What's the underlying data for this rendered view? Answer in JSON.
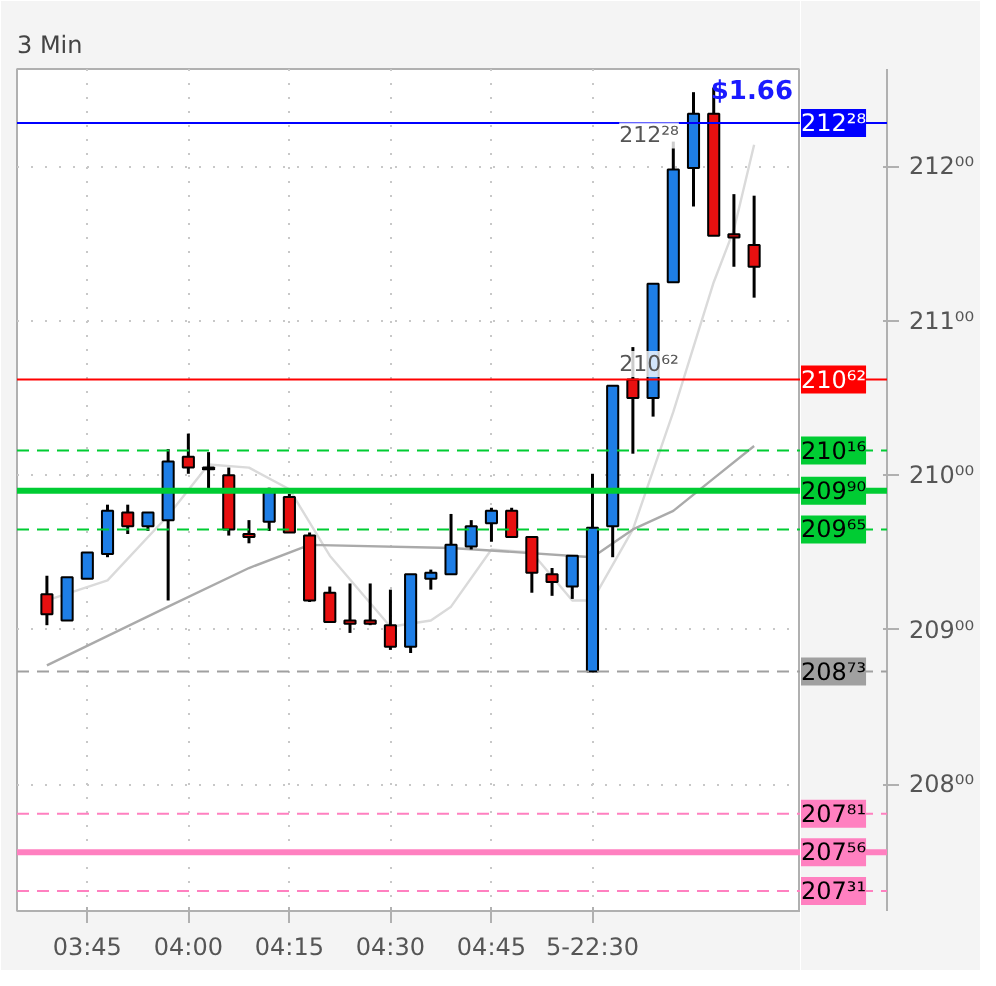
{
  "chart_data": {
    "type": "candlestick",
    "title": "3 Min",
    "x": [
      3.65,
      3.7,
      3.75,
      3.8,
      3.85,
      3.9,
      3.95,
      4.0,
      4.05,
      4.1,
      4.15,
      4.2,
      4.25,
      4.3,
      4.35,
      4.4,
      4.45,
      4.5,
      4.55,
      4.6,
      4.65,
      4.7,
      4.75,
      4.8,
      4.85,
      4.9,
      4.95,
      5.0,
      5.05,
      5.1,
      5.15,
      5.2,
      5.25,
      5.3,
      5.35,
      5.4
    ],
    "ohlc": [
      [
        209.23,
        209.35,
        209.03,
        209.1
      ],
      [
        209.06,
        209.34,
        209.06,
        209.34
      ],
      [
        209.33,
        209.5,
        209.33,
        209.5
      ],
      [
        209.49,
        209.81,
        209.47,
        209.77
      ],
      [
        209.76,
        209.81,
        209.62,
        209.67
      ],
      [
        209.67,
        209.76,
        209.64,
        209.76
      ],
      [
        209.71,
        210.17,
        209.19,
        210.09
      ],
      [
        210.12,
        210.27,
        210.01,
        210.05
      ],
      [
        210.05,
        210.15,
        209.91,
        210.04
      ],
      [
        210.0,
        210.05,
        209.61,
        209.65
      ],
      [
        209.62,
        209.71,
        209.56,
        209.6
      ],
      [
        209.7,
        209.92,
        209.64,
        209.9
      ],
      [
        209.86,
        209.88,
        209.63,
        209.63
      ],
      [
        209.61,
        209.63,
        209.18,
        209.19
      ],
      [
        209.24,
        209.28,
        209.05,
        209.05
      ],
      [
        209.06,
        209.3,
        208.98,
        209.04
      ],
      [
        209.06,
        209.3,
        209.03,
        209.04
      ],
      [
        209.03,
        209.26,
        208.87,
        208.89
      ],
      [
        208.89,
        209.36,
        208.85,
        209.36
      ],
      [
        209.33,
        209.39,
        209.26,
        209.37
      ],
      [
        209.36,
        209.75,
        209.36,
        209.55
      ],
      [
        209.54,
        209.71,
        209.52,
        209.67
      ],
      [
        209.69,
        209.79,
        209.57,
        209.77
      ],
      [
        209.77,
        209.79,
        209.6,
        209.6
      ],
      [
        209.6,
        209.6,
        209.24,
        209.37
      ],
      [
        209.36,
        209.4,
        209.22,
        209.31
      ],
      [
        209.28,
        209.48,
        209.2,
        209.48
      ],
      [
        208.73,
        210.01,
        208.73,
        209.66
      ],
      [
        209.67,
        210.58,
        209.47,
        210.58
      ],
      [
        210.62,
        210.83,
        210.14,
        210.5
      ],
      [
        210.5,
        211.24,
        210.38,
        211.24
      ],
      [
        211.25,
        212.16,
        211.25,
        211.98
      ],
      [
        211.99,
        212.48,
        211.74,
        212.34
      ],
      [
        212.34,
        212.51,
        211.55,
        211.55
      ],
      [
        211.56,
        211.82,
        211.35,
        211.54
      ],
      [
        211.49,
        211.81,
        211.15,
        211.35
      ]
    ],
    "colors": [
      "#e81010",
      "#1e7ee6",
      "#1e7ee6",
      "#1e7ee6",
      "#e81010",
      "#1e7ee6",
      "#1e7ee6",
      "#e81010",
      "#e81010",
      "#e81010",
      "#e81010",
      "#1e7ee6",
      "#e81010",
      "#e81010",
      "#e81010",
      "#e81010",
      "#e81010",
      "#e81010",
      "#1e7ee6",
      "#1e7ee6",
      "#1e7ee6",
      "#1e7ee6",
      "#1e7ee6",
      "#e81010",
      "#e81010",
      "#e81010",
      "#1e7ee6",
      "#1e7ee6",
      "#1e7ee6",
      "#e81010",
      "#1e7ee6",
      "#1e7ee6",
      "#1e7ee6",
      "#e81010",
      "#e81010",
      "#e81010"
    ],
    "series": [
      {
        "type": "line",
        "color": "#dadada",
        "x": [
          3.65,
          3.8,
          3.95,
          4.05,
          4.15,
          4.25,
          4.35,
          4.5,
          4.6,
          4.65,
          4.75,
          4.85,
          4.95,
          5.0,
          5.1,
          5.2,
          5.3,
          5.35,
          5.4
        ],
        "values": [
          209.19,
          209.32,
          209.74,
          210.07,
          210.05,
          209.91,
          209.48,
          209.02,
          209.06,
          209.15,
          209.52,
          209.5,
          209.19,
          209.19,
          209.65,
          210.41,
          211.25,
          211.59,
          212.14
        ]
      },
      {
        "type": "line",
        "color": "#aaaaaa",
        "x": [
          3.65,
          3.95,
          4.15,
          4.3,
          4.65,
          5.0,
          5.1,
          5.2,
          5.3,
          5.4
        ],
        "values": [
          208.77,
          209.15,
          209.4,
          209.55,
          209.53,
          209.47,
          209.65,
          209.77,
          209.98,
          210.19
        ]
      }
    ],
    "xlim": [
      3.576,
      5.516
    ],
    "xticks": [
      {
        "value": 3.75,
        "label": "03:45"
      },
      {
        "value": 4.0,
        "label": "04:00"
      },
      {
        "value": 4.25,
        "label": "04:15"
      },
      {
        "value": 4.5,
        "label": "04:30"
      },
      {
        "value": 4.75,
        "label": "04:45"
      },
      {
        "value": 5.0,
        "label": "5-22:30"
      }
    ],
    "ylim": [
      207.18,
      212.63
    ],
    "yticks": [
      {
        "value": 208,
        "label": "208⁰⁰"
      },
      {
        "value": 209,
        "label": "209⁰⁰"
      },
      {
        "value": 210,
        "label": "210⁰⁰"
      },
      {
        "value": 211,
        "label": "211⁰⁰"
      },
      {
        "value": 212,
        "label": "212⁰⁰"
      }
    ],
    "grid": true,
    "ref_lines": [
      {
        "axis": "y",
        "value": 212.28,
        "label": "212²⁸",
        "color": "#0000ff",
        "line_style": "solid"
      },
      {
        "axis": "y",
        "value": 210.62,
        "label": "210⁶²",
        "color": "#ff0000",
        "line_style": "solid"
      },
      {
        "axis": "y",
        "value": 210.16,
        "label": "210¹⁶",
        "color": "#00cc33",
        "line_style": "dashed"
      },
      {
        "axis": "y",
        "value": 209.9,
        "label": "209⁹⁰",
        "color": "#00cc33",
        "line_style": "solid"
      },
      {
        "axis": "y",
        "value": 209.65,
        "label": "209⁶⁵",
        "color": "#00cc33",
        "line_style": "dashed"
      },
      {
        "axis": "y",
        "value": 208.73,
        "label": "208⁷³",
        "color": "#a0a0a0",
        "line_style": "dashed"
      },
      {
        "axis": "y",
        "value": 207.81,
        "label": "207⁸¹",
        "color": "#ff80c0",
        "line_style": "dashed"
      },
      {
        "axis": "y",
        "value": 207.56,
        "label": "207⁵⁶",
        "color": "#ff80c0",
        "line_style": "solid"
      },
      {
        "axis": "y",
        "value": 207.31,
        "label": "207³¹",
        "color": "#ff80c0",
        "line_style": "dashed"
      }
    ],
    "annotations": [
      "$1.66",
      {
        "text": "212²⁸",
        "x": 5.14,
        "y": 212.2
      },
      {
        "text": "210⁶²",
        "x": 5.14,
        "y": 210.72
      }
    ]
  }
}
